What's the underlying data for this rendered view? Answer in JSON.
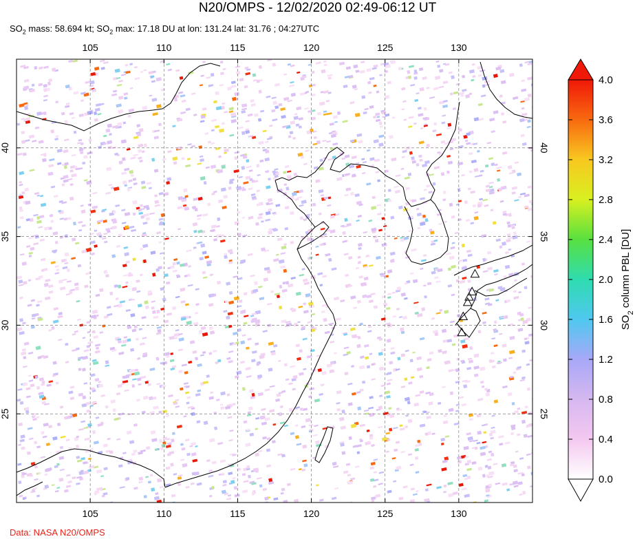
{
  "header": {
    "title": "N20/OMPS - 12/02/2020 02:49-06:12 UT",
    "subtitle_parts": [
      "SO",
      "2",
      " mass: 58.694 kt; SO",
      "2",
      " max: 17.18 DU at lon: 131.24 lat: 31.76 ; 04:27UTC"
    ]
  },
  "footer": {
    "credit": "Data: NASA N20/OMPS"
  },
  "map": {
    "lon_range": [
      100,
      135
    ],
    "lat_range": [
      20,
      45
    ],
    "lon_ticks": [
      "105",
      "110",
      "115",
      "120",
      "125",
      "130"
    ],
    "lat_ticks": [
      "40",
      "35",
      "30",
      "25"
    ],
    "volcano_marker": "triangle-icon"
  },
  "colorbar": {
    "label_main": "SO",
    "label_sub": "2",
    "label_rest": " column PBL [DU]",
    "ticks": [
      "4.0",
      "3.6",
      "3.2",
      "2.8",
      "2.4",
      "2.0",
      "1.6",
      "1.2",
      "0.8",
      "0.4",
      "0.0"
    ],
    "range": [
      0.0,
      4.0
    ],
    "colors": [
      "#ffffff",
      "#f4c8f0",
      "#d6b8f0",
      "#a8a8f8",
      "#4fc8f0",
      "#2fdcb0",
      "#58e040",
      "#d8f020",
      "#f8c820",
      "#f86a10",
      "#f01808"
    ]
  }
}
